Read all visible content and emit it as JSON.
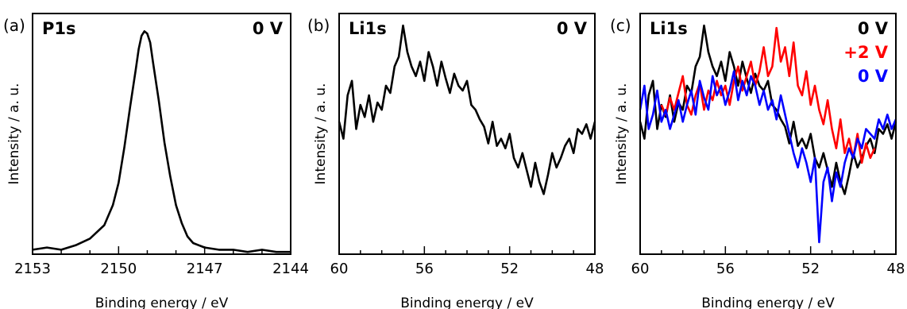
{
  "chart_data": [
    {
      "type": "line",
      "panel_label": "(a)",
      "core_level": "P1s",
      "xlabel": "Binding energy / eV",
      "ylabel": "Intensity / a. u.",
      "xlim": [
        2153,
        2144
      ],
      "x_reversed": true,
      "ylim": [
        0,
        1.08
      ],
      "xticks": [
        2153,
        2150,
        2147,
        2144
      ],
      "xminor_step": 1,
      "series": [
        {
          "name": "0 V",
          "color": "#000000",
          "x": [
            2153.0,
            2152.5,
            2152.0,
            2151.5,
            2151.0,
            2150.5,
            2150.2,
            2150.0,
            2149.8,
            2149.6,
            2149.4,
            2149.3,
            2149.2,
            2149.1,
            2149.0,
            2148.9,
            2148.8,
            2148.6,
            2148.4,
            2148.2,
            2148.0,
            2147.8,
            2147.6,
            2147.4,
            2147.2,
            2147.0,
            2146.5,
            2146.0,
            2145.5,
            2145.0,
            2144.5,
            2144.0
          ],
          "y": [
            0.02,
            0.03,
            0.02,
            0.04,
            0.07,
            0.13,
            0.22,
            0.32,
            0.48,
            0.66,
            0.83,
            0.92,
            0.98,
            1.0,
            0.99,
            0.95,
            0.86,
            0.69,
            0.5,
            0.35,
            0.22,
            0.14,
            0.08,
            0.05,
            0.04,
            0.03,
            0.02,
            0.02,
            0.01,
            0.02,
            0.01,
            0.01
          ]
        }
      ],
      "annotations": [
        "0 V"
      ]
    },
    {
      "type": "line",
      "panel_label": "(b)",
      "core_level": "Li1s",
      "xlabel": "Binding energy / eV",
      "ylabel": "Intensity / a. u.",
      "xlim": [
        60,
        48
      ],
      "x_reversed": true,
      "ylim": [
        0,
        1.0
      ],
      "xticks": [
        60,
        56,
        52,
        48
      ],
      "xminor_step": 1,
      "series": [
        {
          "name": "0 V",
          "color": "#000000",
          "x": [
            60.0,
            59.8,
            59.6,
            59.4,
            59.2,
            59.0,
            58.8,
            58.6,
            58.4,
            58.2,
            58.0,
            57.8,
            57.6,
            57.4,
            57.2,
            57.0,
            56.8,
            56.6,
            56.4,
            56.2,
            56.0,
            55.8,
            55.6,
            55.4,
            55.2,
            55.0,
            54.8,
            54.6,
            54.4,
            54.2,
            54.0,
            53.8,
            53.6,
            53.4,
            53.2,
            53.0,
            52.8,
            52.6,
            52.4,
            52.2,
            52.0,
            51.8,
            51.6,
            51.4,
            51.2,
            51.0,
            50.8,
            50.6,
            50.4,
            50.2,
            50.0,
            49.8,
            49.6,
            49.4,
            49.2,
            49.0,
            48.8,
            48.6,
            48.4,
            48.2,
            48.0
          ],
          "y": [
            0.55,
            0.48,
            0.66,
            0.72,
            0.52,
            0.62,
            0.57,
            0.66,
            0.55,
            0.63,
            0.6,
            0.7,
            0.67,
            0.78,
            0.82,
            0.95,
            0.84,
            0.78,
            0.74,
            0.8,
            0.72,
            0.84,
            0.78,
            0.7,
            0.8,
            0.73,
            0.67,
            0.75,
            0.7,
            0.68,
            0.72,
            0.62,
            0.6,
            0.56,
            0.53,
            0.46,
            0.55,
            0.45,
            0.48,
            0.44,
            0.5,
            0.4,
            0.36,
            0.42,
            0.35,
            0.28,
            0.38,
            0.3,
            0.25,
            0.33,
            0.42,
            0.36,
            0.4,
            0.45,
            0.48,
            0.42,
            0.52,
            0.5,
            0.54,
            0.48,
            0.55
          ]
        }
      ],
      "annotations": [
        "0 V"
      ]
    },
    {
      "type": "line",
      "panel_label": "(c)",
      "core_level": "Li1s",
      "xlabel": "Binding energy / eV",
      "ylabel": "Intensity / a. u.",
      "xlim": [
        60,
        48
      ],
      "x_reversed": true,
      "ylim": [
        0,
        1.0
      ],
      "xticks": [
        60,
        56,
        52,
        48
      ],
      "xminor_step": 1,
      "series": [
        {
          "name": "0 V",
          "color": "#000000",
          "x": [
            60.0,
            59.8,
            59.6,
            59.4,
            59.2,
            59.0,
            58.8,
            58.6,
            58.4,
            58.2,
            58.0,
            57.8,
            57.6,
            57.4,
            57.2,
            57.0,
            56.8,
            56.6,
            56.4,
            56.2,
            56.0,
            55.8,
            55.6,
            55.4,
            55.2,
            55.0,
            54.8,
            54.6,
            54.4,
            54.2,
            54.0,
            53.8,
            53.6,
            53.4,
            53.2,
            53.0,
            52.8,
            52.6,
            52.4,
            52.2,
            52.0,
            51.8,
            51.6,
            51.4,
            51.2,
            51.0,
            50.8,
            50.6,
            50.4,
            50.2,
            50.0,
            49.8,
            49.6,
            49.4,
            49.2,
            49.0,
            48.8,
            48.6,
            48.4,
            48.2,
            48.0
          ],
          "y": [
            0.55,
            0.48,
            0.66,
            0.72,
            0.52,
            0.62,
            0.57,
            0.66,
            0.55,
            0.63,
            0.6,
            0.7,
            0.67,
            0.78,
            0.82,
            0.95,
            0.84,
            0.78,
            0.74,
            0.8,
            0.72,
            0.84,
            0.78,
            0.7,
            0.8,
            0.73,
            0.67,
            0.75,
            0.7,
            0.68,
            0.72,
            0.62,
            0.6,
            0.56,
            0.53,
            0.46,
            0.55,
            0.45,
            0.48,
            0.44,
            0.5,
            0.4,
            0.36,
            0.42,
            0.35,
            0.28,
            0.38,
            0.3,
            0.25,
            0.33,
            0.42,
            0.36,
            0.4,
            0.45,
            0.48,
            0.42,
            0.52,
            0.5,
            0.54,
            0.48,
            0.55
          ]
        },
        {
          "name": "+2 V",
          "color": "#ff0000",
          "x": [
            59.0,
            58.8,
            58.6,
            58.4,
            58.2,
            58.0,
            57.8,
            57.6,
            57.4,
            57.2,
            57.0,
            56.8,
            56.6,
            56.4,
            56.2,
            56.0,
            55.8,
            55.6,
            55.4,
            55.2,
            55.0,
            54.8,
            54.6,
            54.4,
            54.2,
            54.0,
            53.8,
            53.6,
            53.4,
            53.2,
            53.0,
            52.8,
            52.6,
            52.4,
            52.2,
            52.0,
            51.8,
            51.6,
            51.4,
            51.2,
            51.0,
            50.8,
            50.6,
            50.4,
            50.2,
            50.0,
            49.8,
            49.6,
            49.4,
            49.2,
            49.0
          ],
          "y": [
            0.62,
            0.58,
            0.65,
            0.6,
            0.67,
            0.74,
            0.62,
            0.58,
            0.66,
            0.71,
            0.6,
            0.68,
            0.64,
            0.72,
            0.66,
            0.7,
            0.62,
            0.72,
            0.78,
            0.68,
            0.74,
            0.8,
            0.7,
            0.76,
            0.86,
            0.74,
            0.78,
            0.94,
            0.8,
            0.86,
            0.74,
            0.88,
            0.7,
            0.66,
            0.76,
            0.62,
            0.7,
            0.6,
            0.54,
            0.64,
            0.52,
            0.44,
            0.56,
            0.42,
            0.48,
            0.4,
            0.5,
            0.38,
            0.46,
            0.4,
            0.44
          ]
        },
        {
          "name": "0 V",
          "color": "#0000ff",
          "x": [
            60.0,
            59.8,
            59.6,
            59.4,
            59.2,
            59.0,
            58.8,
            58.6,
            58.4,
            58.2,
            58.0,
            57.8,
            57.6,
            57.4,
            57.2,
            57.0,
            56.8,
            56.6,
            56.4,
            56.2,
            56.0,
            55.8,
            55.6,
            55.4,
            55.2,
            55.0,
            54.8,
            54.6,
            54.4,
            54.2,
            54.0,
            53.8,
            53.6,
            53.4,
            53.2,
            53.0,
            52.8,
            52.6,
            52.4,
            52.2,
            52.0,
            51.8,
            51.6,
            51.4,
            51.2,
            51.0,
            50.8,
            50.6,
            50.4,
            50.2,
            50.0,
            49.8,
            49.6,
            49.4,
            49.2,
            49.0,
            48.8,
            48.6,
            48.4,
            48.2,
            48.0
          ],
          "y": [
            0.6,
            0.7,
            0.52,
            0.58,
            0.68,
            0.55,
            0.6,
            0.52,
            0.58,
            0.64,
            0.55,
            0.62,
            0.68,
            0.58,
            0.72,
            0.65,
            0.6,
            0.74,
            0.66,
            0.7,
            0.62,
            0.68,
            0.76,
            0.64,
            0.72,
            0.66,
            0.74,
            0.7,
            0.62,
            0.68,
            0.6,
            0.64,
            0.56,
            0.66,
            0.58,
            0.5,
            0.42,
            0.36,
            0.44,
            0.38,
            0.3,
            0.4,
            0.05,
            0.3,
            0.36,
            0.22,
            0.34,
            0.28,
            0.38,
            0.44,
            0.4,
            0.48,
            0.44,
            0.52,
            0.5,
            0.48,
            0.56,
            0.52,
            0.58,
            0.52,
            0.56
          ]
        }
      ],
      "annotations": [
        "0 V",
        "+2 V",
        "0 V"
      ]
    }
  ]
}
